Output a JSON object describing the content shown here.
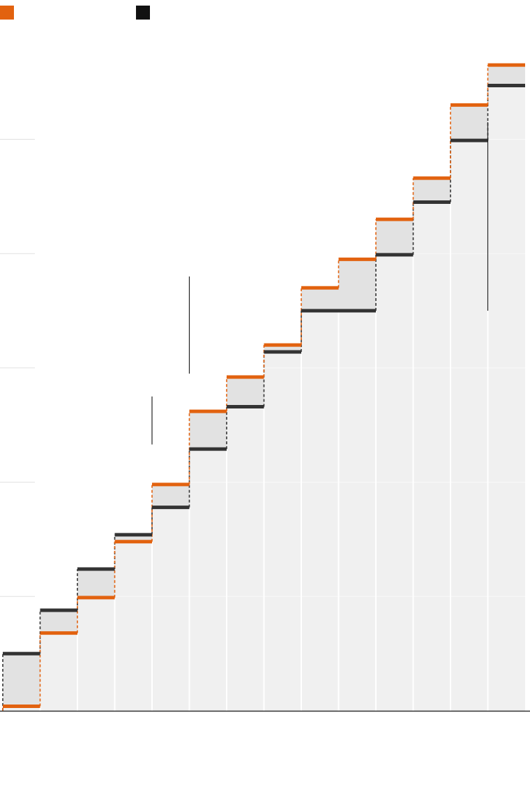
{
  "colors": {
    "series_a": "#e2620f",
    "series_b": "#333333",
    "legend_b": "#111111",
    "column_fill": "#f0f0f0",
    "gap_fill": "#e2e2e2",
    "gridline": "#e0e0e0",
    "axis": "#333333",
    "annotation_line": "#222222"
  },
  "legend": [
    {
      "label": "",
      "color": "#e2620f"
    },
    {
      "label": "",
      "color": "#111111"
    }
  ],
  "chart_data": {
    "type": "step",
    "title": "",
    "xlabel": "",
    "ylabel": "",
    "x": [
      1,
      2,
      3,
      4,
      5,
      6,
      7,
      8,
      9,
      10,
      11,
      12,
      13,
      14
    ],
    "ylim": [
      0,
      6
    ],
    "yticks": [
      0,
      1,
      2,
      3,
      4,
      5
    ],
    "grid": true,
    "legend_position": "top-left",
    "series": [
      {
        "values": [
          0.04,
          0.68,
          0.99,
          1.48,
          1.98,
          2.62,
          2.92,
          3.2,
          3.7,
          3.95,
          4.3,
          4.66,
          5.3,
          5.65
        ]
      },
      {
        "values": [
          0.5,
          0.88,
          1.24,
          1.54,
          1.78,
          2.29,
          2.66,
          3.14,
          3.5,
          3.5,
          3.99,
          4.45,
          4.99,
          5.47
        ]
      }
    ],
    "annotations": [
      {
        "x": 4.5,
        "y_range": [
          2.33,
          2.75
        ]
      },
      {
        "x": 5.5,
        "y_range": [
          2.95,
          3.8
        ]
      },
      {
        "x": 13.5,
        "y_range": [
          3.5,
          5.15
        ]
      }
    ]
  }
}
